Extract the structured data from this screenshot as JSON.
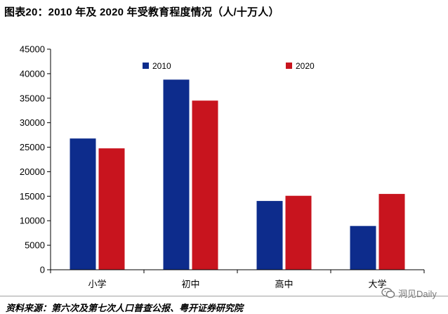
{
  "source": "资料来源：第六次及第七次人口普查公报、粤开证券研究院",
  "watermark": {
    "text": "洞见Daily",
    "icon": "wechat-icon",
    "color": "#7a7a7a"
  },
  "chart_data": {
    "type": "bar",
    "title": "图表20：2010 年及 2020 年受教育程度情况（人/十万人）",
    "xlabel": "",
    "ylabel": "",
    "categories": [
      "小学",
      "初中",
      "高中",
      "大学"
    ],
    "series": [
      {
        "name": "2010",
        "color": "#0d2c8c",
        "values": [
          26779,
          38788,
          14032,
          8930
        ]
      },
      {
        "name": "2020",
        "color": "#c8141e",
        "values": [
          24767,
          34507,
          15088,
          15467
        ]
      }
    ],
    "ylim": [
      0,
      45000
    ],
    "yticks": [
      0,
      5000,
      10000,
      15000,
      20000,
      25000,
      30000,
      35000,
      40000,
      45000
    ],
    "grid": false,
    "legend": "top"
  }
}
